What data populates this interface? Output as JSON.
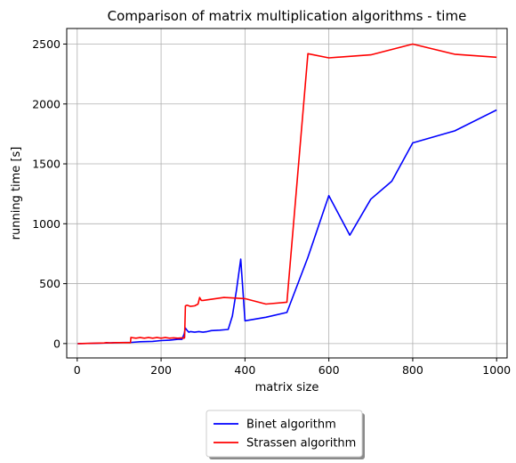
{
  "chart_data": {
    "type": "line",
    "title": "Comparison of matrix multiplication algorithms - time",
    "xlabel": "matrix size",
    "ylabel": "running time [s]",
    "xlim": [
      -25,
      1025
    ],
    "ylim": [
      -120,
      2630
    ],
    "xticks": [
      0,
      200,
      400,
      600,
      800,
      1000
    ],
    "yticks": [
      0,
      500,
      1000,
      1500,
      2000,
      2500
    ],
    "grid": true,
    "legend_position": "below",
    "series": [
      {
        "name": "Binet algorithm",
        "color": "#0000ff",
        "x": [
          1,
          50,
          100,
          130,
          150,
          180,
          200,
          220,
          240,
          250,
          255,
          258,
          262,
          266,
          270,
          280,
          290,
          300,
          310,
          320,
          340,
          360,
          370,
          380,
          390,
          400,
          450,
          500,
          550,
          600,
          650,
          700,
          750,
          800,
          900,
          1000
        ],
        "y": [
          0,
          3,
          8,
          10,
          15,
          18,
          25,
          28,
          35,
          35,
          80,
          130,
          110,
          95,
          100,
          95,
          100,
          95,
          100,
          108,
          112,
          118,
          230,
          450,
          705,
          190,
          220,
          260,
          720,
          1235,
          905,
          1205,
          1355,
          1675,
          1775,
          1950
        ]
      },
      {
        "name": "Strassen algorithm",
        "color": "#ff0000",
        "x": [
          1,
          64,
          70,
          80,
          90,
          127,
          128,
          140,
          150,
          160,
          170,
          180,
          190,
          200,
          210,
          220,
          230,
          240,
          250,
          255,
          256,
          258,
          262,
          270,
          280,
          288,
          292,
          296,
          300,
          350,
          400,
          450,
          500,
          550,
          600,
          700,
          800,
          900,
          1000
        ],
        "y": [
          0,
          5,
          8,
          5,
          8,
          8,
          50,
          45,
          50,
          45,
          50,
          45,
          50,
          45,
          50,
          45,
          48,
          45,
          48,
          45,
          50,
          315,
          320,
          310,
          315,
          330,
          385,
          360,
          360,
          385,
          375,
          330,
          345,
          2420,
          2385,
          2410,
          2500,
          2415,
          2390
        ]
      }
    ]
  }
}
